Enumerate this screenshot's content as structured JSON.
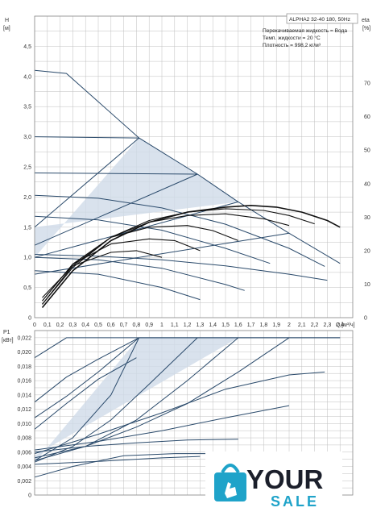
{
  "chart_data": [
    {
      "type": "line",
      "name_label": "ALPHA2 32-40 180, 50Hz",
      "info_lines": [
        "Перекачиваемая жидкость = Вода",
        "Темп. жидкости = 20 °C",
        "Плотность = 998,2 кг/м³"
      ],
      "ylabel": "H",
      "yunit": "[м]",
      "y2label": "eta",
      "y2unit": "[%]",
      "xlabel": "Q",
      "xunit": "[м³/ч]",
      "xlim": [
        0,
        2.5
      ],
      "ylim": [
        0,
        5.0
      ],
      "y2lim": [
        0,
        90
      ],
      "grid": true,
      "x_ticks": [
        "0",
        "0,1",
        "0,2",
        "0,3",
        "0,4",
        "0,5",
        "0,6",
        "0,7",
        "0,8",
        "0,9",
        "1",
        "1,1",
        "1,2",
        "1,3",
        "1,4",
        "1,5",
        "1,6",
        "1,7",
        "1,8",
        "1,9",
        "2",
        "2,1",
        "2,2",
        "2,3",
        "2,4"
      ],
      "y_ticks": [
        "0",
        "0,5",
        "1,0",
        "1,5",
        "2,0",
        "2,5",
        "3,0",
        "3,5",
        "4,0",
        "4,5"
      ],
      "y2_ticks": [
        "0",
        "10",
        "20",
        "30",
        "40",
        "50",
        "60",
        "70"
      ],
      "shaded_region": [
        [
          0,
          1.0
        ],
        [
          0.82,
          2.98
        ],
        [
          1.28,
          2.38
        ],
        [
          1.6,
          1.92
        ],
        [
          0,
          1.5
        ]
      ],
      "head_series": [
        {
          "x": [
            0,
            0.25,
            0.82,
            1.28,
            1.6,
            2.0,
            2.4
          ],
          "values": [
            4.1,
            4.05,
            2.98,
            2.38,
            1.92,
            1.4,
            0.9
          ]
        },
        {
          "x": [
            0,
            0.82
          ],
          "values": [
            3.0,
            2.98
          ]
        },
        {
          "x": [
            0,
            1.28
          ],
          "values": [
            2.4,
            2.38
          ]
        },
        {
          "x": [
            0,
            0.5,
            1.0,
            1.5,
            2.0,
            2.28
          ],
          "values": [
            2.03,
            1.98,
            1.82,
            1.55,
            1.15,
            0.85
          ]
        },
        {
          "x": [
            0,
            0.5,
            1.0,
            1.5,
            1.85
          ],
          "values": [
            1.68,
            1.62,
            1.45,
            1.15,
            0.9
          ]
        },
        {
          "x": [
            0,
            0.82
          ],
          "values": [
            1.5,
            2.98
          ]
        },
        {
          "x": [
            0,
            1.28
          ],
          "values": [
            1.2,
            2.38
          ]
        },
        {
          "x": [
            0,
            1.6
          ],
          "values": [
            1.0,
            1.92
          ]
        },
        {
          "x": [
            0,
            2.0
          ],
          "values": [
            0.72,
            1.4
          ]
        },
        {
          "x": [
            0,
            0.5,
            1.0,
            1.5,
            1.65
          ],
          "values": [
            1.0,
            0.96,
            0.82,
            0.55,
            0.45
          ]
        },
        {
          "x": [
            0,
            0.5,
            1.0,
            1.3
          ],
          "values": [
            0.78,
            0.72,
            0.5,
            0.3
          ]
        },
        {
          "x": [
            0,
            0.5,
            1.0,
            1.5,
            2.0,
            2.3
          ],
          "values": [
            1.05,
            1.02,
            0.96,
            0.86,
            0.72,
            0.62
          ]
        }
      ],
      "efficiency_series": [
        {
          "x": [
            0.06,
            0.3,
            0.6,
            0.9,
            1.2,
            1.5,
            1.7,
            1.9,
            2.1,
            2.3,
            2.4
          ],
          "values": [
            3,
            14,
            23,
            28.5,
            31.5,
            33,
            33.5,
            33,
            31.5,
            29,
            27
          ]
        },
        {
          "x": [
            0.06,
            0.3,
            0.6,
            0.9,
            1.2,
            1.5,
            1.8,
            2.0,
            2.2
          ],
          "values": [
            4,
            15,
            24,
            29,
            31.5,
            32.5,
            32,
            30.5,
            28
          ]
        },
        {
          "x": [
            0.06,
            0.3,
            0.6,
            0.9,
            1.2,
            1.5,
            1.8,
            2.0
          ],
          "values": [
            4,
            15.5,
            24,
            28.5,
            30.5,
            31,
            29.5,
            27.5
          ]
        },
        {
          "x": [
            0.06,
            0.3,
            0.6,
            0.9,
            1.2,
            1.4,
            1.6
          ],
          "values": [
            5,
            16,
            24,
            27,
            27.5,
            26,
            23
          ]
        },
        {
          "x": [
            0.06,
            0.3,
            0.6,
            0.9,
            1.1,
            1.3
          ],
          "values": [
            5,
            16,
            22,
            23.5,
            23,
            20
          ]
        },
        {
          "x": [
            0.06,
            0.3,
            0.6,
            0.8,
            1.0
          ],
          "values": [
            6,
            15.5,
            19.5,
            20,
            18
          ]
        }
      ]
    },
    {
      "type": "line",
      "ylabel": "P1",
      "yunit": "[кВт]",
      "xlim": [
        0,
        2.5
      ],
      "ylim": [
        0,
        0.023
      ],
      "grid": true,
      "y_ticks": [
        "0",
        "0,002",
        "0,004",
        "0,006",
        "0,008",
        "0,010",
        "0,012",
        "0,014",
        "0,016",
        "0,018",
        "0,020",
        "0,022"
      ],
      "shaded_region": [
        [
          0,
          0.0045
        ],
        [
          0.82,
          0.022
        ],
        [
          1.6,
          0.022
        ],
        [
          0,
          0.0055
        ]
      ],
      "power_series": [
        {
          "x": [
            0,
            0.25,
            2.4
          ],
          "values": [
            0.0192,
            0.022,
            0.022
          ]
        },
        {
          "x": [
            0,
            0.3,
            0.6,
            0.82,
            2.4
          ],
          "values": [
            0.0048,
            0.008,
            0.014,
            0.022,
            0.022
          ]
        },
        {
          "x": [
            0,
            0.3,
            0.6,
            0.9,
            1.28
          ],
          "values": [
            0.0046,
            0.0068,
            0.0105,
            0.0155,
            0.022
          ]
        },
        {
          "x": [
            0,
            0.4,
            0.8,
            1.2,
            1.6
          ],
          "values": [
            0.0048,
            0.0068,
            0.0105,
            0.016,
            0.022
          ]
        },
        {
          "x": [
            0,
            0.4,
            0.8,
            1.2,
            1.6,
            2.0
          ],
          "values": [
            0.0052,
            0.0068,
            0.0095,
            0.0128,
            0.0172,
            0.022
          ]
        },
        {
          "x": [
            0,
            0.5,
            1.0,
            1.5,
            2.0,
            2.28
          ],
          "values": [
            0.0058,
            0.0085,
            0.0115,
            0.0148,
            0.0168,
            0.0172
          ]
        },
        {
          "x": [
            0,
            0.5,
            1.0,
            1.5,
            2.0
          ],
          "values": [
            0.0063,
            0.0075,
            0.009,
            0.0108,
            0.0125
          ]
        },
        {
          "x": [
            0,
            0.4,
            0.8,
            1.2,
            1.6
          ],
          "values": [
            0.006,
            0.0068,
            0.0073,
            0.0077,
            0.0078
          ]
        },
        {
          "x": [
            0,
            0.5,
            1.0,
            1.3
          ],
          "values": [
            0.0043,
            0.0047,
            0.0052,
            0.0054
          ]
        },
        {
          "x": [
            0,
            0.25,
            0.5,
            0.8
          ],
          "values": [
            0.0092,
            0.0128,
            0.0162,
            0.0192
          ]
        },
        {
          "x": [
            0,
            0.25,
            0.5,
            0.82
          ],
          "values": [
            0.0108,
            0.0138,
            0.0172,
            0.022
          ]
        },
        {
          "x": [
            0,
            0.25,
            0.5,
            0.82
          ],
          "values": [
            0.013,
            0.0165,
            0.019,
            0.022
          ]
        },
        {
          "x": [
            0,
            0.3,
            0.7,
            1.1,
            1.5
          ],
          "values": [
            0.0025,
            0.004,
            0.0055,
            0.0058,
            0.0058
          ]
        }
      ]
    }
  ],
  "logo": {
    "word1": "YOUR",
    "word2": "SALE",
    "accent": "#1fa3c9",
    "dark": "#1b1f2b"
  },
  "colors": {
    "curve": "#2a4a6b",
    "eta_curve": "#111111",
    "fill": "#cfdbe8",
    "grid": "#bfbfbf",
    "frame": "#8a8a8a"
  }
}
